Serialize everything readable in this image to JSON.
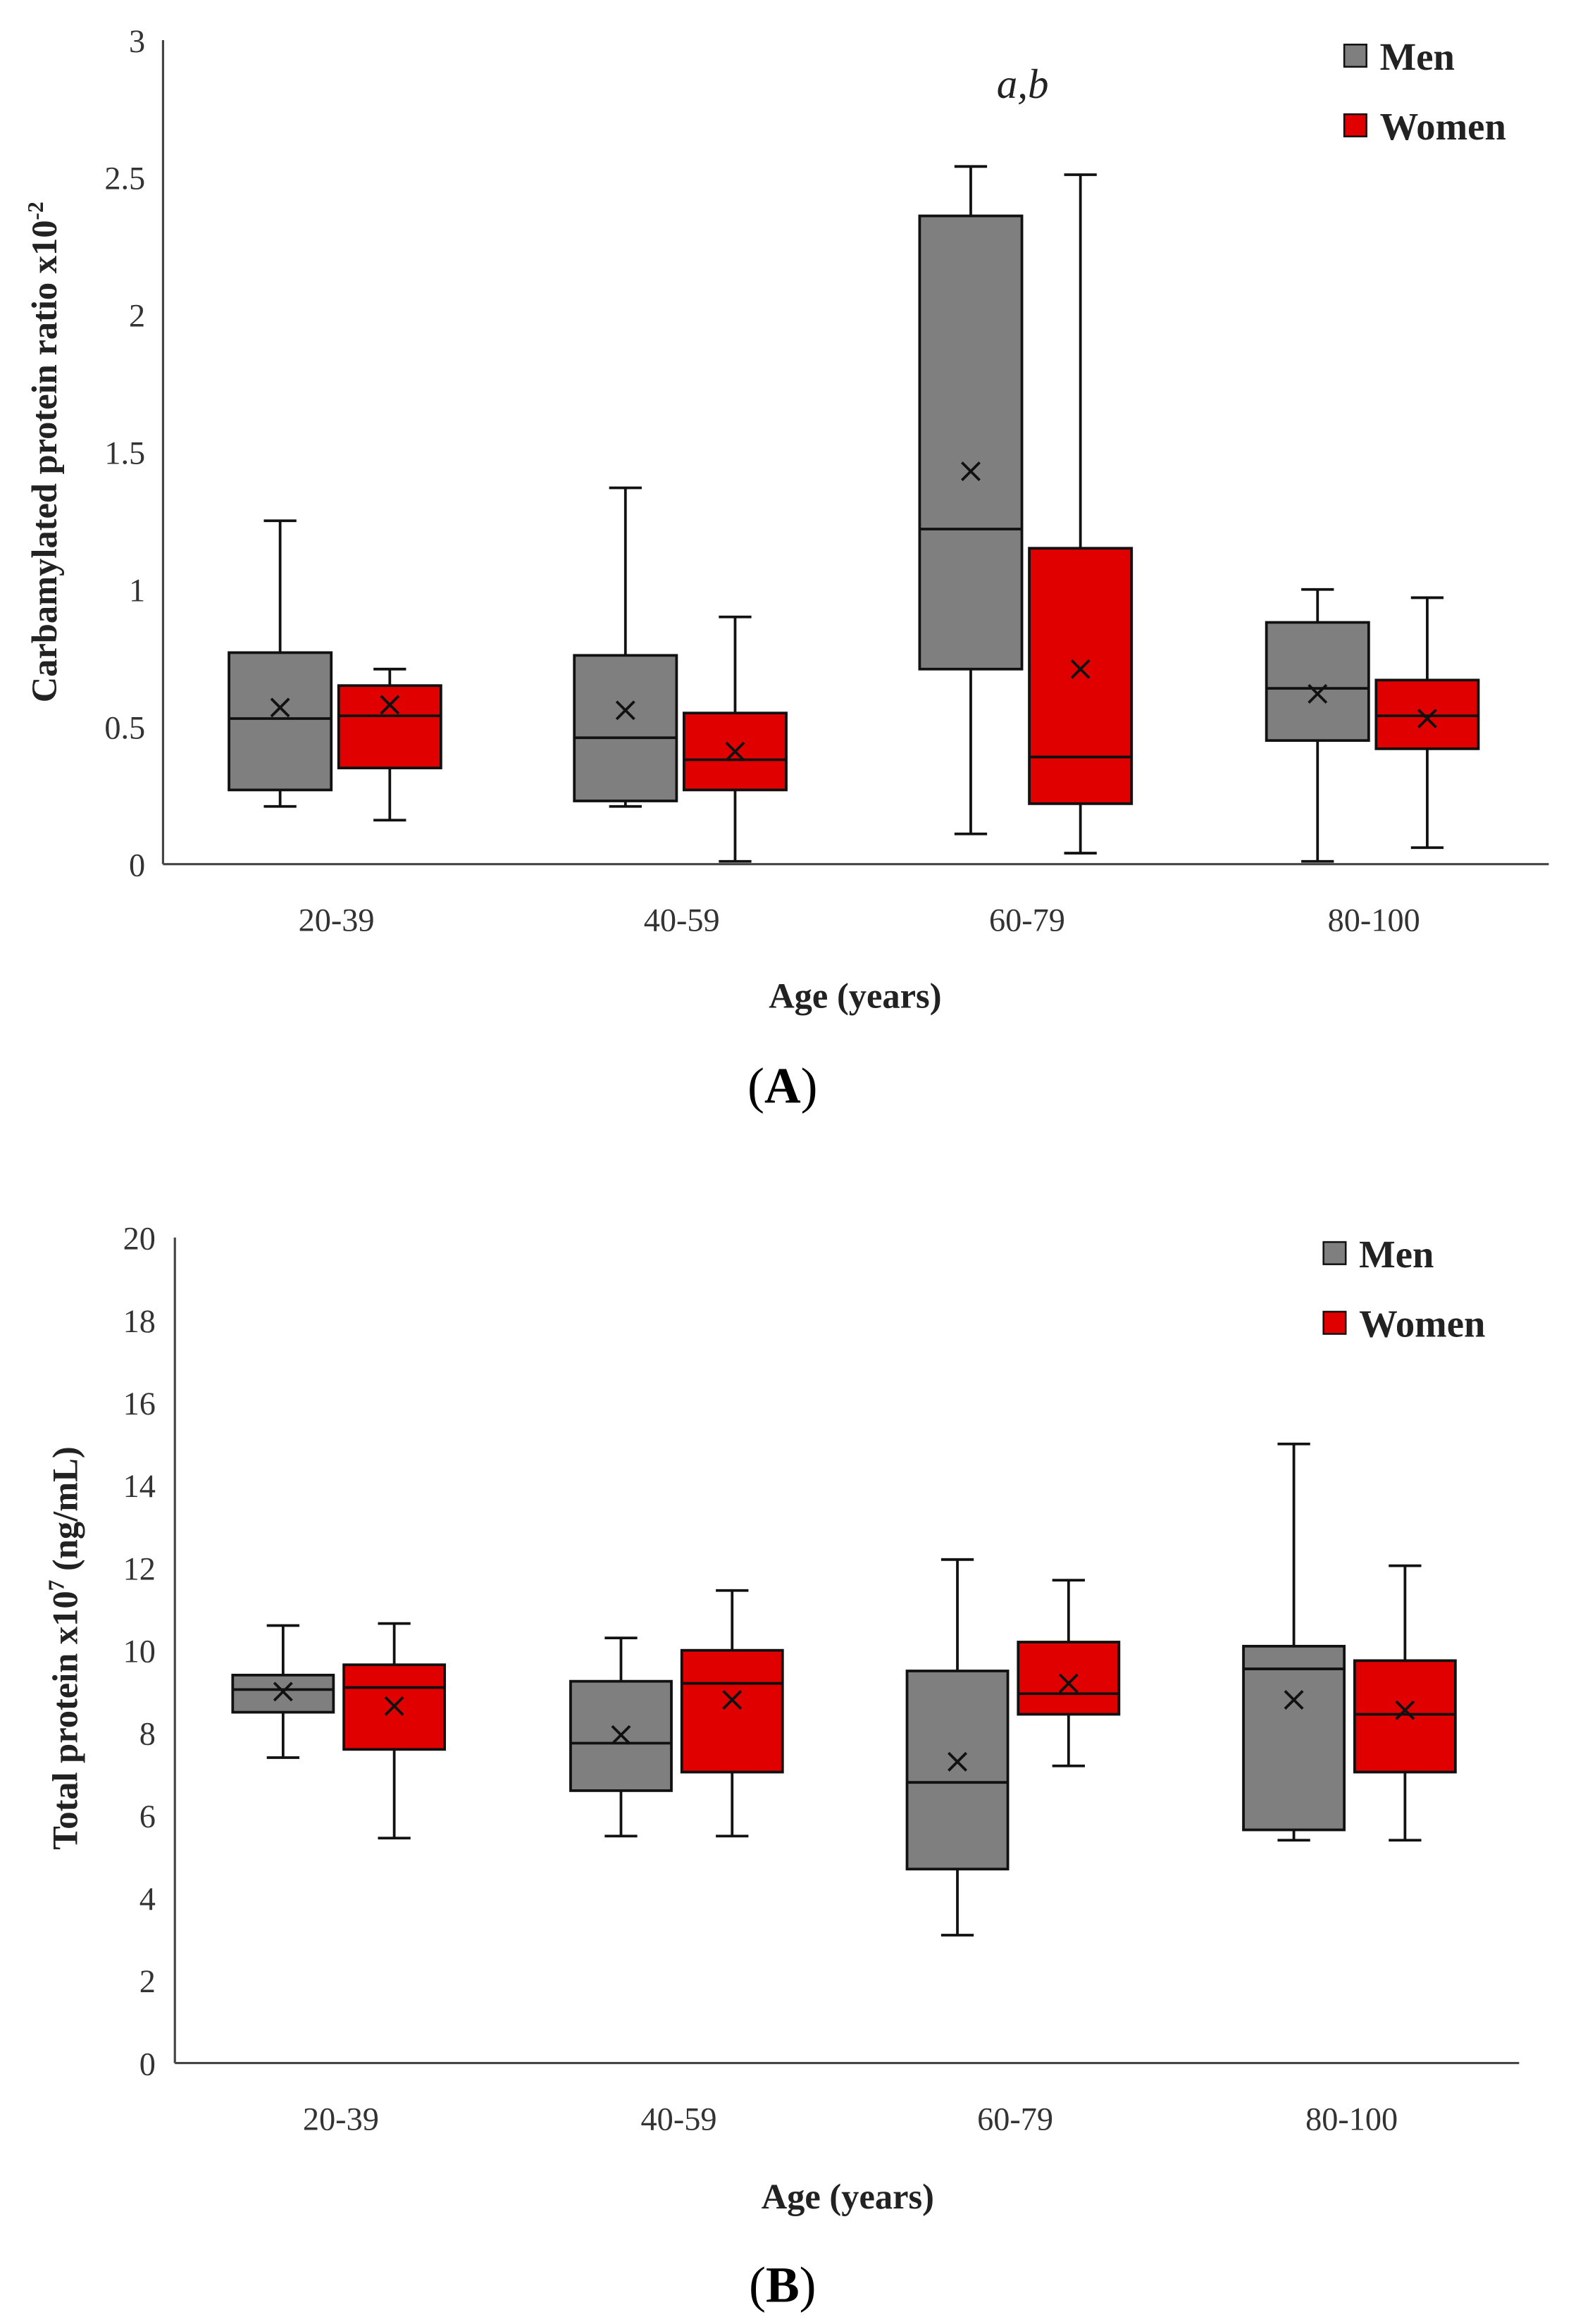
{
  "colors": {
    "Men": "#7f7f7f",
    "Women": "#e00000"
  },
  "chart_data": [
    {
      "type": "box",
      "panel": "A",
      "xlabel": "Age (years)",
      "ylabel": "Carbamylated protein ratio x10",
      "ylabel_sup": "-2",
      "ylim": [
        0,
        3
      ],
      "yticks": [
        0,
        0.5,
        1,
        1.5,
        2,
        2.5,
        3
      ],
      "ytick_labels": [
        "0",
        "0.5",
        "1",
        "1.5",
        "2",
        "2.5",
        "3"
      ],
      "categories": [
        "20-39",
        "40-59",
        "60-79",
        "80-100"
      ],
      "legend": [
        "Men",
        "Women"
      ],
      "legend_position": "top-right",
      "annotation": {
        "text": "a,b",
        "category": "60-79"
      },
      "series": [
        {
          "name": "Men",
          "boxes": [
            {
              "min": 0.21,
              "q1": 0.27,
              "median": 0.53,
              "q3": 0.77,
              "max": 1.25,
              "mean": 0.57
            },
            {
              "min": 0.21,
              "q1": 0.23,
              "median": 0.46,
              "q3": 0.76,
              "max": 1.37,
              "mean": 0.56
            },
            {
              "min": 0.11,
              "q1": 0.71,
              "median": 1.22,
              "q3": 2.36,
              "max": 2.54,
              "mean": 1.43
            },
            {
              "min": 0.01,
              "q1": 0.45,
              "median": 0.64,
              "q3": 0.88,
              "max": 1.0,
              "mean": 0.62
            }
          ]
        },
        {
          "name": "Women",
          "boxes": [
            {
              "min": 0.16,
              "q1": 0.35,
              "median": 0.54,
              "q3": 0.65,
              "max": 0.71,
              "mean": 0.58
            },
            {
              "min": 0.01,
              "q1": 0.27,
              "median": 0.38,
              "q3": 0.55,
              "max": 0.9,
              "mean": 0.41
            },
            {
              "min": 0.04,
              "q1": 0.22,
              "median": 0.39,
              "q3": 1.15,
              "max": 2.51,
              "mean": 0.71
            },
            {
              "min": 0.06,
              "q1": 0.42,
              "median": 0.54,
              "q3": 0.67,
              "max": 0.97,
              "mean": 0.53
            }
          ]
        }
      ]
    },
    {
      "type": "box",
      "panel": "B",
      "xlabel": "Age (years)",
      "ylabel": "Total protein x10",
      "ylabel_sup": "7",
      "ylabel_suffix": " (ng/mL)",
      "ylim": [
        0,
        20
      ],
      "yticks": [
        0,
        2,
        4,
        6,
        8,
        10,
        12,
        14,
        16,
        18,
        20
      ],
      "ytick_labels": [
        "0",
        "2",
        "4",
        "6",
        "8",
        "10",
        "12",
        "14",
        "16",
        "18",
        "20"
      ],
      "categories": [
        "20-39",
        "40-59",
        "60-79",
        "80-100"
      ],
      "legend": [
        "Men",
        "Women"
      ],
      "legend_position": "top-right",
      "series": [
        {
          "name": "Men",
          "boxes": [
            {
              "min": 7.4,
              "q1": 8.5,
              "median": 9.05,
              "q3": 9.4,
              "max": 10.6,
              "mean": 9.0
            },
            {
              "min": 5.5,
              "q1": 6.6,
              "median": 7.75,
              "q3": 9.25,
              "max": 10.3,
              "mean": 7.95
            },
            {
              "min": 3.1,
              "q1": 4.7,
              "median": 6.8,
              "q3": 9.5,
              "max": 12.2,
              "mean": 7.3
            },
            {
              "min": 5.4,
              "q1": 5.65,
              "median": 9.55,
              "q3": 10.1,
              "max": 15.0,
              "mean": 8.8
            }
          ]
        },
        {
          "name": "Women",
          "boxes": [
            {
              "min": 5.45,
              "q1": 7.6,
              "median": 9.1,
              "q3": 9.65,
              "max": 10.65,
              "mean": 8.65
            },
            {
              "min": 5.5,
              "q1": 7.05,
              "median": 9.2,
              "q3": 10.0,
              "max": 11.45,
              "mean": 8.8
            },
            {
              "min": 7.2,
              "q1": 8.45,
              "median": 8.95,
              "q3": 10.2,
              "max": 11.7,
              "mean": 9.2
            },
            {
              "min": 5.4,
              "q1": 7.05,
              "median": 8.45,
              "q3": 9.75,
              "max": 12.05,
              "mean": 8.55
            }
          ]
        }
      ]
    }
  ]
}
